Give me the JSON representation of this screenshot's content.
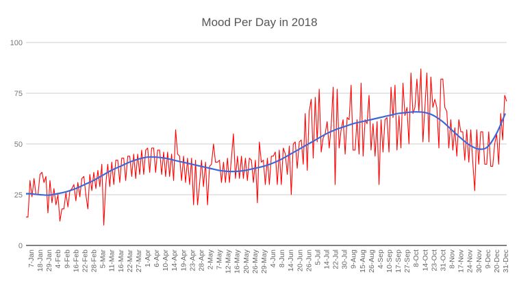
{
  "chart_data": {
    "type": "line",
    "title": "Mood Per Day in 2018",
    "xlabel": "",
    "ylabel": "",
    "ylim": [
      0,
      100
    ],
    "y_ticks": [
      "0",
      "25",
      "50",
      "75",
      "100"
    ],
    "grid": true,
    "legend": "none",
    "x_tick_labels": [
      "7-Jan",
      "18-Jan",
      "29-Jan",
      "4-Feb",
      "9-Feb",
      "16-Feb",
      "22-Feb",
      "28-Feb",
      "5-Mar",
      "11-Mar",
      "16-Mar",
      "22-Mar",
      "27-Mar",
      "1-Apr",
      "6-Apr",
      "10-Apr",
      "14-Apr",
      "19-Apr",
      "23-Apr",
      "28-Apr",
      "2-May",
      "7-May",
      "12-May",
      "16-May",
      "20-May",
      "26-May",
      "29-May",
      "4-Jun",
      "8-Jun",
      "14-Jun",
      "20-Jun",
      "26-Jun",
      "5-Jul",
      "14-Jul",
      "22-Jul",
      "30-Jul",
      "9-Aug",
      "15-Aug",
      "26-Aug",
      "4-Sep",
      "10-Sep",
      "17-Sep",
      "27-Sep",
      "8-Oct",
      "14-Oct",
      "23-Oct",
      "31-Oct",
      "8-Nov",
      "17-Nov",
      "24-Nov",
      "30-Nov",
      "9-Dec",
      "20-Dec",
      "31-Dec"
    ],
    "series": [
      {
        "color": "#ff0000",
        "values": [
          14,
          14,
          32,
          24,
          33,
          25,
          25,
          35,
          36,
          31,
          34,
          16,
          32,
          21,
          28,
          20,
          25,
          12,
          18,
          18,
          26,
          19,
          27,
          28,
          30,
          22,
          31,
          24,
          33,
          34,
          25,
          18,
          35,
          27,
          36,
          28,
          37,
          29,
          40,
          10,
          30,
          40,
          29,
          41,
          30,
          42,
          42,
          31,
          43,
          43,
          32,
          44,
          44,
          34,
          45,
          33,
          45,
          35,
          47,
          35,
          47,
          48,
          36,
          48,
          48,
          36,
          47,
          47,
          35,
          46,
          34,
          46,
          34,
          45,
          32,
          57,
          45,
          44,
          32,
          44,
          31,
          43,
          30,
          43,
          20,
          42,
          20,
          30,
          42,
          29,
          41,
          20,
          39,
          40,
          50,
          41,
          41,
          42,
          31,
          41,
          31,
          43,
          31,
          43,
          55,
          33,
          44,
          33,
          44,
          33,
          43,
          32,
          43,
          42,
          31,
          42,
          21,
          51,
          41,
          42,
          30,
          43,
          30,
          44,
          44,
          46,
          30,
          47,
          30,
          48,
          45,
          35,
          49,
          25,
          50,
          51,
          38,
          51,
          52,
          40,
          65,
          37,
          66,
          72,
          43,
          73,
          51,
          77,
          46,
          53,
          55,
          61,
          48,
          59,
          78,
          30,
          77,
          48,
          57,
          62,
          45,
          63,
          62,
          79,
          47,
          47,
          62,
          45,
          80,
          44,
          62,
          60,
          74,
          47,
          60,
          44,
          61,
          30,
          62,
          46,
          62,
          63,
          46,
          78,
          63,
          79,
          47,
          64,
          48,
          80,
          64,
          68,
          50,
          85,
          65,
          68,
          82,
          66,
          87,
          51,
          68,
          85,
          51,
          83,
          68,
          72,
          68,
          48,
          82,
          82,
          68,
          66,
          48,
          62,
          47,
          58,
          44,
          62,
          56,
          56,
          42,
          57,
          41,
          57,
          41,
          27,
          57,
          40,
          56,
          56,
          40,
          40,
          56,
          39,
          39,
          50,
          55,
          40,
          65,
          52,
          74,
          71
        ]
      },
      {
        "type": "trendline",
        "color": "#3b68d8",
        "values_at_ticks": [
          25.5,
          25,
          24.8,
          25.5,
          26.5,
          28,
          30,
          32,
          34.5,
          37,
          39,
          41,
          42.5,
          43.5,
          43.5,
          43,
          42,
          41,
          40,
          39,
          38,
          37,
          36.5,
          36.5,
          37,
          38,
          39,
          40.5,
          42.5,
          45,
          47.5,
          50,
          52.5,
          55,
          57,
          58.5,
          60,
          61,
          62,
          63,
          64,
          65,
          65.5,
          65.8,
          65.5,
          64,
          61,
          57,
          53,
          49.5,
          47.5,
          48.5,
          55,
          65
        ]
      }
    ]
  }
}
